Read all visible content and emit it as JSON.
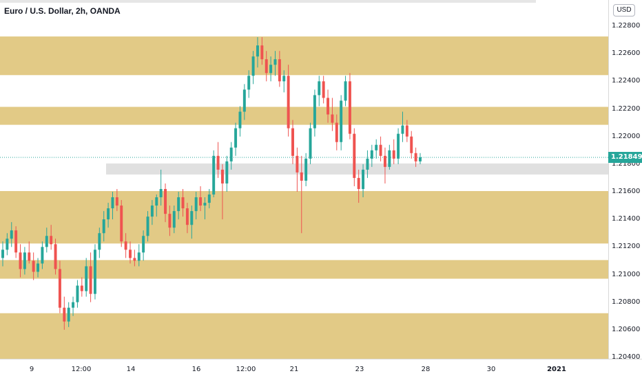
{
  "header": {
    "symbol_title": "Euro / U.S. Dollar, 2h, OANDA"
  },
  "currency_button": {
    "label": "USD"
  },
  "price_axis": {
    "labels": [
      "1.22800",
      "1.22600",
      "1.22400",
      "1.22200",
      "1.22000",
      "1.21800",
      "1.21600",
      "1.21400",
      "1.21200",
      "1.21000",
      "1.20800",
      "1.20600",
      "1.20400"
    ],
    "last_price": "1.21849"
  },
  "time_axis": {
    "labels": [
      "9",
      "12:00",
      "14",
      "16",
      "12:00",
      "21",
      "23",
      "28",
      "30",
      "2021"
    ]
  },
  "colors": {
    "up": "#26a69a",
    "down": "#ef5350",
    "zone_fill": "#e0c77f",
    "grey_zone": "#e0e0e0",
    "last_price_line": "#26a69a"
  },
  "chart_data": {
    "type": "candlestick",
    "instrument": "Euro / U.S. Dollar",
    "timeframe": "2h",
    "source": "OANDA",
    "ylim": [
      1.2035,
      1.2292
    ],
    "last_price": 1.21849,
    "supply_demand_zones": [
      [
        1.22445,
        1.22725
      ],
      [
        1.22085,
        1.22215
      ],
      [
        1.21225,
        1.21605
      ],
      [
        1.2097,
        1.21105
      ],
      [
        1.20385,
        1.2072
      ]
    ],
    "grey_zone": [
      1.21725,
      1.21805
    ],
    "candles": [
      [
        1.2112,
        1.2124,
        1.2106,
        1.2118
      ],
      [
        1.2118,
        1.213,
        1.2114,
        1.2126
      ],
      [
        1.2126,
        1.2138,
        1.212,
        1.2132
      ],
      [
        1.2132,
        1.2135,
        1.2112,
        1.2116
      ],
      [
        1.2116,
        1.2122,
        1.2098,
        1.2104
      ],
      [
        1.2104,
        1.212,
        1.21,
        1.2116
      ],
      [
        1.2116,
        1.2124,
        1.2108,
        1.211
      ],
      [
        1.211,
        1.2116,
        1.2096,
        1.2102
      ],
      [
        1.2102,
        1.2112,
        1.2098,
        1.2108
      ],
      [
        1.2108,
        1.2124,
        1.2104,
        1.212
      ],
      [
        1.212,
        1.2134,
        1.2116,
        1.2128
      ],
      [
        1.2128,
        1.2136,
        1.2118,
        1.2122
      ],
      [
        1.2122,
        1.2126,
        1.21,
        1.2104
      ],
      [
        1.2104,
        1.211,
        1.2072,
        1.2076
      ],
      [
        1.2076,
        1.2084,
        1.206,
        1.2066
      ],
      [
        1.2066,
        1.208,
        1.2062,
        1.2076
      ],
      [
        1.2076,
        1.2084,
        1.207,
        1.208
      ],
      [
        1.208,
        1.2096,
        1.2076,
        1.2092
      ],
      [
        1.2092,
        1.2098,
        1.2084,
        1.2088
      ],
      [
        1.2088,
        1.2112,
        1.2084,
        1.2106
      ],
      [
        1.2106,
        1.2116,
        1.208,
        1.2086
      ],
      [
        1.2086,
        1.2122,
        1.2082,
        1.2118
      ],
      [
        1.2118,
        1.2134,
        1.2112,
        1.213
      ],
      [
        1.213,
        1.2146,
        1.2124,
        1.214
      ],
      [
        1.214,
        1.2152,
        1.2134,
        1.2148
      ],
      [
        1.2148,
        1.216,
        1.214,
        1.2156
      ],
      [
        1.2156,
        1.2162,
        1.2146,
        1.215
      ],
      [
        1.215,
        1.2154,
        1.212,
        1.2124
      ],
      [
        1.2124,
        1.213,
        1.2112,
        1.2118
      ],
      [
        1.2118,
        1.2124,
        1.2108,
        1.2112
      ],
      [
        1.2112,
        1.2118,
        1.2106,
        1.211
      ],
      [
        1.211,
        1.2122,
        1.2106,
        1.2116
      ],
      [
        1.2116,
        1.2132,
        1.211,
        1.2128
      ],
      [
        1.2128,
        1.2146,
        1.2124,
        1.2142
      ],
      [
        1.2142,
        1.2154,
        1.2136,
        1.215
      ],
      [
        1.215,
        1.2158,
        1.2142,
        1.2156
      ],
      [
        1.2156,
        1.2176,
        1.215,
        1.2162
      ],
      [
        1.2162,
        1.2166,
        1.2138,
        1.2144
      ],
      [
        1.2144,
        1.215,
        1.2128,
        1.2134
      ],
      [
        1.2134,
        1.215,
        1.213,
        1.2146
      ],
      [
        1.2146,
        1.216,
        1.214,
        1.2156
      ],
      [
        1.2156,
        1.2162,
        1.2142,
        1.2148
      ],
      [
        1.2148,
        1.2152,
        1.213,
        1.2136
      ],
      [
        1.2136,
        1.215,
        1.2126,
        1.2146
      ],
      [
        1.2146,
        1.216,
        1.214,
        1.2156
      ],
      [
        1.2156,
        1.2164,
        1.2146,
        1.215
      ],
      [
        1.215,
        1.2156,
        1.214,
        1.2152
      ],
      [
        1.2152,
        1.2162,
        1.2148,
        1.2158
      ],
      [
        1.2158,
        1.219,
        1.2156,
        1.2186
      ],
      [
        1.2186,
        1.2196,
        1.217,
        1.2176
      ],
      [
        1.2176,
        1.218,
        1.214,
        1.2166
      ],
      [
        1.2166,
        1.2186,
        1.216,
        1.2182
      ],
      [
        1.2182,
        1.2196,
        1.2176,
        1.2192
      ],
      [
        1.2192,
        1.221,
        1.2186,
        1.2206
      ],
      [
        1.2206,
        1.2222,
        1.22,
        1.2218
      ],
      [
        1.2218,
        1.2238,
        1.2212,
        1.2234
      ],
      [
        1.2234,
        1.2248,
        1.2228,
        1.2244
      ],
      [
        1.2244,
        1.2262,
        1.2238,
        1.2258
      ],
      [
        1.2258,
        1.2272,
        1.225,
        1.2266
      ],
      [
        1.2266,
        1.2272,
        1.2252,
        1.2256
      ],
      [
        1.2256,
        1.2262,
        1.224,
        1.2246
      ],
      [
        1.2246,
        1.2258,
        1.224,
        1.2252
      ],
      [
        1.2252,
        1.2262,
        1.2244,
        1.2256
      ],
      [
        1.2256,
        1.2262,
        1.2236,
        1.224
      ],
      [
        1.224,
        1.2248,
        1.2232,
        1.2244
      ],
      [
        1.2244,
        1.2252,
        1.22,
        1.2206
      ],
      [
        1.2206,
        1.2212,
        1.218,
        1.2186
      ],
      [
        1.2186,
        1.2192,
        1.216,
        1.2174
      ],
      [
        1.2174,
        1.2186,
        1.213,
        1.2168
      ],
      [
        1.2168,
        1.2188,
        1.2164,
        1.2184
      ],
      [
        1.2184,
        1.221,
        1.218,
        1.2206
      ],
      [
        1.2206,
        1.2234,
        1.22,
        1.223
      ],
      [
        1.223,
        1.2244,
        1.2222,
        1.224
      ],
      [
        1.224,
        1.2244,
        1.2224,
        1.2228
      ],
      [
        1.2228,
        1.2234,
        1.221,
        1.2216
      ],
      [
        1.2216,
        1.2228,
        1.2204,
        1.221
      ],
      [
        1.221,
        1.2216,
        1.219,
        1.2196
      ],
      [
        1.2196,
        1.223,
        1.219,
        1.2226
      ],
      [
        1.2226,
        1.2244,
        1.2222,
        1.224
      ],
      [
        1.224,
        1.2246,
        1.2198,
        1.2202
      ],
      [
        1.2202,
        1.2206,
        1.2164,
        1.217
      ],
      [
        1.217,
        1.2176,
        1.2152,
        1.2162
      ],
      [
        1.2162,
        1.218,
        1.2156,
        1.2176
      ],
      [
        1.2176,
        1.219,
        1.217,
        1.2184
      ],
      [
        1.2184,
        1.2194,
        1.2178,
        1.219
      ],
      [
        1.219,
        1.2198,
        1.2184,
        1.2194
      ],
      [
        1.2194,
        1.22,
        1.2182,
        1.2186
      ],
      [
        1.2186,
        1.2192,
        1.2166,
        1.2178
      ],
      [
        1.2178,
        1.2194,
        1.2176,
        1.219
      ],
      [
        1.219,
        1.2198,
        1.218,
        1.2184
      ],
      [
        1.2184,
        1.2206,
        1.218,
        1.2202
      ],
      [
        1.2202,
        1.2218,
        1.2196,
        1.2208
      ],
      [
        1.2208,
        1.2212,
        1.2196,
        1.22
      ],
      [
        1.22,
        1.2204,
        1.2184,
        1.2188
      ],
      [
        1.2188,
        1.2192,
        1.2178,
        1.2182
      ],
      [
        1.2182,
        1.2188,
        1.218,
        1.2185
      ]
    ]
  }
}
